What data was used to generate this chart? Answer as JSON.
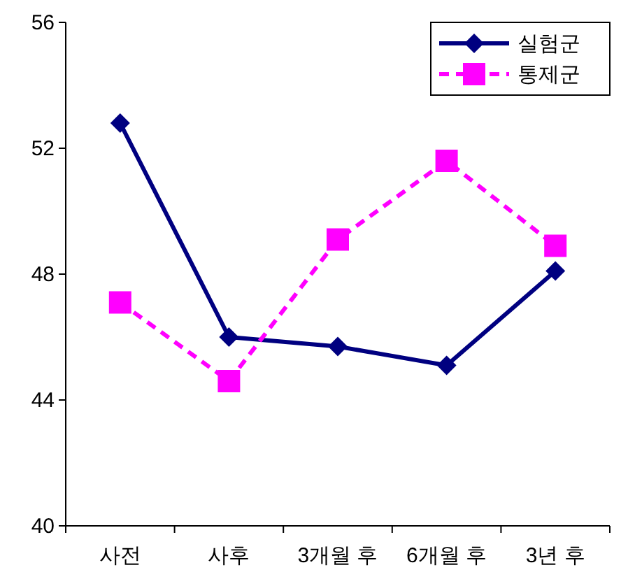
{
  "chart_data": {
    "type": "line",
    "categories": [
      "사전",
      "사후",
      "3개월 후",
      "6개월 후",
      "3년 후"
    ],
    "series": [
      {
        "name": "실험군",
        "color": "#000080",
        "marker": "diamond",
        "line_style": "solid",
        "values": [
          52.8,
          46.0,
          45.7,
          45.1,
          48.1
        ]
      },
      {
        "name": "통제군",
        "color": "#ff00ff",
        "marker": "square",
        "line_style": "dashed",
        "values": [
          47.1,
          44.6,
          49.1,
          51.6,
          48.9
        ]
      }
    ],
    "ylim": [
      40,
      56
    ],
    "yticks": [
      40,
      44,
      48,
      52,
      56
    ],
    "grid": false,
    "legend": "top right"
  }
}
